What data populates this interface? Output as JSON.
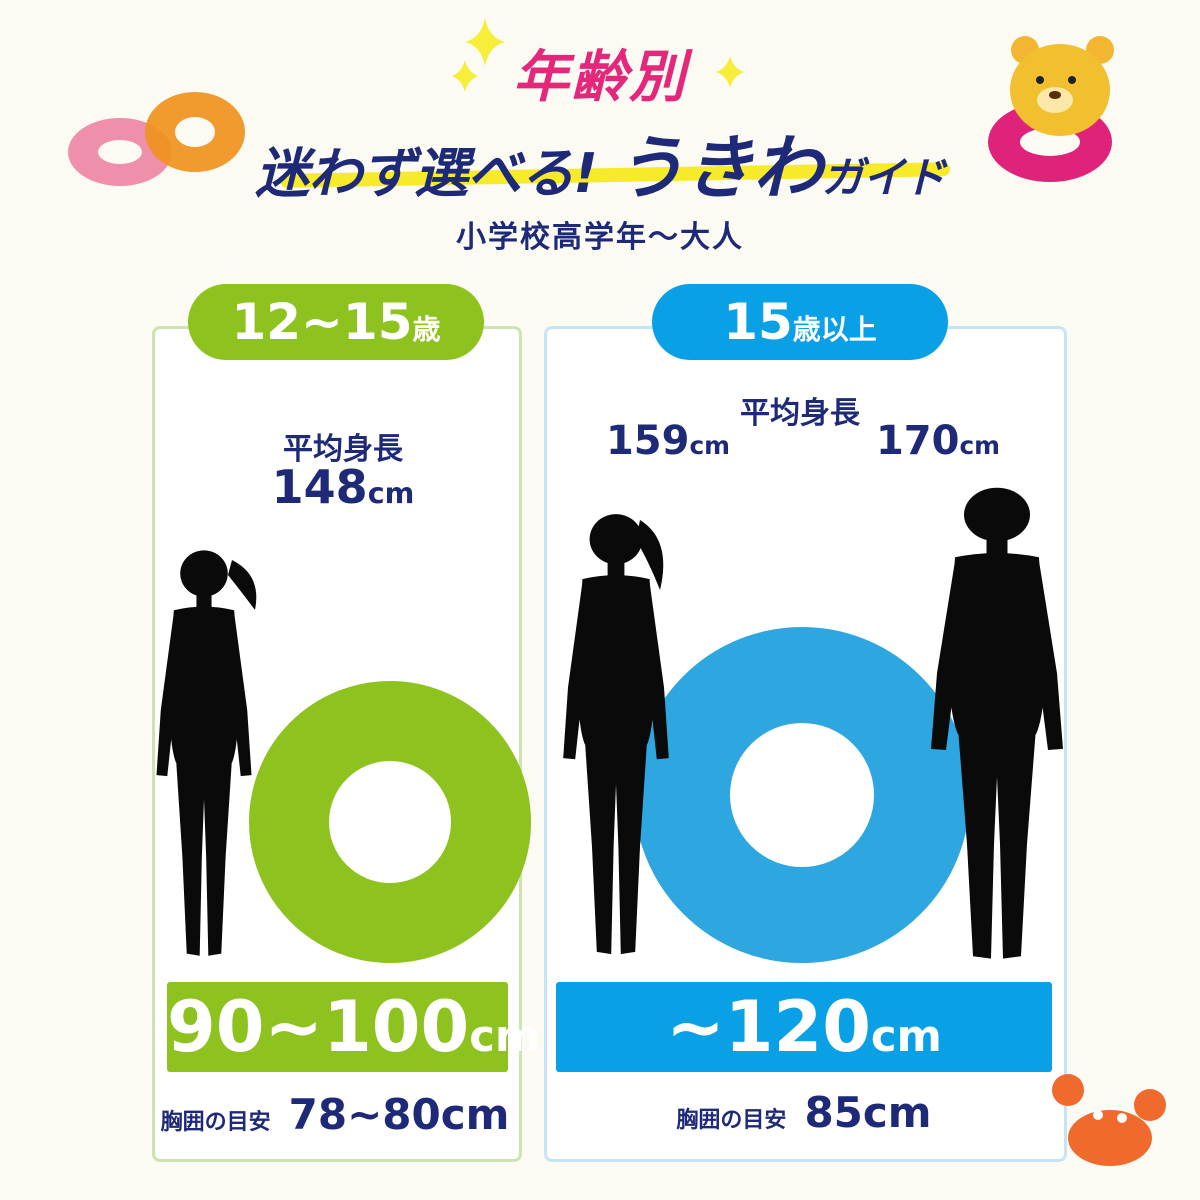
{
  "header": {
    "title_line1": "年齢別",
    "title_line2_a": "迷わず選べる!",
    "title_line2_b": "うきわ",
    "title_line2_c": "ガイド",
    "subtitle": "小学校高学年～大人"
  },
  "groups": [
    {
      "age_num": "12~15",
      "age_unit": "歳",
      "height_label": "平均身長",
      "heights": [
        {
          "value": "148",
          "unit": "cm"
        }
      ],
      "ring_size": "90~100",
      "ring_unit": "cm",
      "chest_label": "胸囲の目安",
      "chest_value": "78~80",
      "chest_unit": "cm",
      "color": "#8dc21f"
    },
    {
      "age_num": "15",
      "age_unit": "歳以上",
      "height_label": "平均身長",
      "heights": [
        {
          "value": "159",
          "unit": "cm"
        },
        {
          "value": "170",
          "unit": "cm"
        }
      ],
      "ring_size": "~120",
      "ring_unit": "cm",
      "chest_label": "胸囲の目安",
      "chest_value": "85",
      "chest_unit": "cm",
      "color": "#0aa0e6"
    }
  ],
  "colors": {
    "text": "#1e2a78",
    "title_pink": "#e4277b",
    "background": "#fbfbf3",
    "highlight": "#f6ea2a"
  },
  "icons": [
    "sparkle-icon",
    "swim-ring-icon",
    "bear-mascot-icon",
    "crab-icon",
    "person-silhouette-icon"
  ]
}
